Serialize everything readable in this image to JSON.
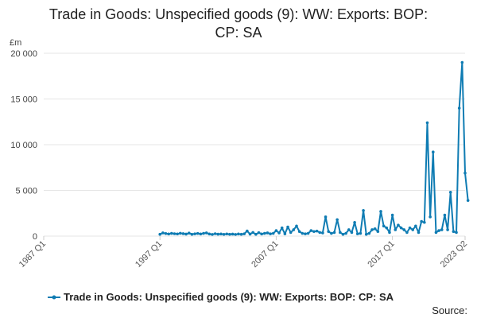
{
  "chart_data": {
    "type": "line",
    "title_lines": [
      "Trade in Goods: Unspecified goods (9): WW: Exports: BOP:",
      "CP: SA"
    ],
    "ylabel": "£m",
    "ylim": [
      0,
      20000
    ],
    "yticks": [
      0,
      5000,
      10000,
      15000,
      20000
    ],
    "ytick_labels": [
      "0",
      "5 000",
      "10 000",
      "15 000",
      "20 000"
    ],
    "xlim": [
      1987.0,
      2023.25
    ],
    "xticks": [
      {
        "label": "1987 Q1",
        "value": 1987.0
      },
      {
        "label": "1997 Q1",
        "value": 1997.0
      },
      {
        "label": "2007 Q1",
        "value": 2007.0
      },
      {
        "label": "2017 Q1",
        "value": 2017.0
      },
      {
        "label": "2023 Q2",
        "value": 2023.25
      }
    ],
    "grid": true,
    "legend_position": "bottom",
    "series": [
      {
        "name": "Trade in Goods: Unspecified goods (9): WW: Exports: BOP: CP: SA",
        "color": "#0f7cb3",
        "points": [
          [
            1997.0,
            200
          ],
          [
            1997.25,
            350
          ],
          [
            1997.5,
            280
          ],
          [
            1997.75,
            230
          ],
          [
            1998.0,
            300
          ],
          [
            1998.25,
            260
          ],
          [
            1998.5,
            240
          ],
          [
            1998.75,
            310
          ],
          [
            1999.0,
            270
          ],
          [
            1999.25,
            220
          ],
          [
            1999.5,
            330
          ],
          [
            1999.75,
            200
          ],
          [
            2000.0,
            250
          ],
          [
            2000.25,
            290
          ],
          [
            2000.5,
            230
          ],
          [
            2000.75,
            300
          ],
          [
            2001.0,
            350
          ],
          [
            2001.25,
            230
          ],
          [
            2001.5,
            180
          ],
          [
            2001.75,
            260
          ],
          [
            2002.0,
            210
          ],
          [
            2002.25,
            230
          ],
          [
            2002.5,
            190
          ],
          [
            2002.75,
            240
          ],
          [
            2003.0,
            200
          ],
          [
            2003.25,
            220
          ],
          [
            2003.5,
            180
          ],
          [
            2003.75,
            230
          ],
          [
            2004.0,
            200
          ],
          [
            2004.25,
            250
          ],
          [
            2004.5,
            560
          ],
          [
            2004.75,
            220
          ],
          [
            2005.0,
            400
          ],
          [
            2005.25,
            200
          ],
          [
            2005.5,
            380
          ],
          [
            2005.75,
            230
          ],
          [
            2006.0,
            300
          ],
          [
            2006.25,
            350
          ],
          [
            2006.5,
            250
          ],
          [
            2006.75,
            300
          ],
          [
            2007.0,
            600
          ],
          [
            2007.25,
            350
          ],
          [
            2007.5,
            900
          ],
          [
            2007.75,
            250
          ],
          [
            2008.0,
            1000
          ],
          [
            2008.25,
            400
          ],
          [
            2008.5,
            700
          ],
          [
            2008.75,
            1100
          ],
          [
            2009.0,
            500
          ],
          [
            2009.25,
            300
          ],
          [
            2009.5,
            250
          ],
          [
            2009.75,
            300
          ],
          [
            2010.0,
            600
          ],
          [
            2010.25,
            500
          ],
          [
            2010.5,
            550
          ],
          [
            2010.75,
            400
          ],
          [
            2011.0,
            350
          ],
          [
            2011.25,
            2100
          ],
          [
            2011.5,
            500
          ],
          [
            2011.75,
            300
          ],
          [
            2012.0,
            400
          ],
          [
            2012.25,
            1800
          ],
          [
            2012.5,
            400
          ],
          [
            2012.75,
            200
          ],
          [
            2013.0,
            300
          ],
          [
            2013.25,
            700
          ],
          [
            2013.5,
            400
          ],
          [
            2013.75,
            1500
          ],
          [
            2014.0,
            250
          ],
          [
            2014.25,
            300
          ],
          [
            2014.5,
            2800
          ],
          [
            2014.75,
            200
          ],
          [
            2015.0,
            300
          ],
          [
            2015.25,
            700
          ],
          [
            2015.5,
            800
          ],
          [
            2015.75,
            500
          ],
          [
            2016.0,
            2700
          ],
          [
            2016.25,
            1100
          ],
          [
            2016.5,
            900
          ],
          [
            2016.75,
            400
          ],
          [
            2017.0,
            2300
          ],
          [
            2017.25,
            700
          ],
          [
            2017.5,
            1200
          ],
          [
            2017.75,
            900
          ],
          [
            2018.0,
            700
          ],
          [
            2018.25,
            400
          ],
          [
            2018.5,
            900
          ],
          [
            2018.75,
            700
          ],
          [
            2019.0,
            1100
          ],
          [
            2019.25,
            400
          ],
          [
            2019.5,
            1600
          ],
          [
            2019.75,
            1500
          ],
          [
            2020.0,
            12400
          ],
          [
            2020.25,
            2100
          ],
          [
            2020.5,
            9200
          ],
          [
            2020.75,
            400
          ],
          [
            2021.0,
            600
          ],
          [
            2021.25,
            700
          ],
          [
            2021.5,
            2300
          ],
          [
            2021.75,
            700
          ],
          [
            2022.0,
            4800
          ],
          [
            2022.25,
            500
          ],
          [
            2022.5,
            400
          ],
          [
            2022.75,
            14000
          ],
          [
            2023.0,
            19000
          ],
          [
            2023.25,
            6900
          ],
          [
            2023.5,
            3900
          ]
        ]
      }
    ]
  },
  "source_label": "Source:"
}
